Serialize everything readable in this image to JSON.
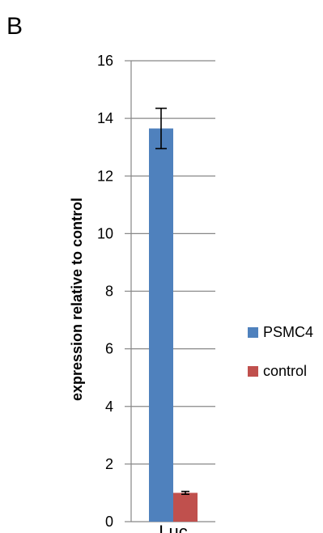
{
  "panel_label": "B",
  "chart_data": {
    "type": "bar",
    "title": "",
    "xlabel": "",
    "ylabel": "expression relative to control",
    "categories": [
      "Luc"
    ],
    "ylim": [
      0,
      16
    ],
    "yticks": [
      0,
      2,
      4,
      6,
      8,
      10,
      12,
      14,
      16
    ],
    "grid": true,
    "legend_position": "right",
    "series": [
      {
        "name": "PSMC4",
        "values": [
          13.65
        ],
        "error": [
          0.7
        ],
        "color": "#4F81BD"
      },
      {
        "name": "control",
        "values": [
          1.0
        ],
        "error": [
          0.05
        ],
        "color": "#C0504D"
      }
    ]
  }
}
